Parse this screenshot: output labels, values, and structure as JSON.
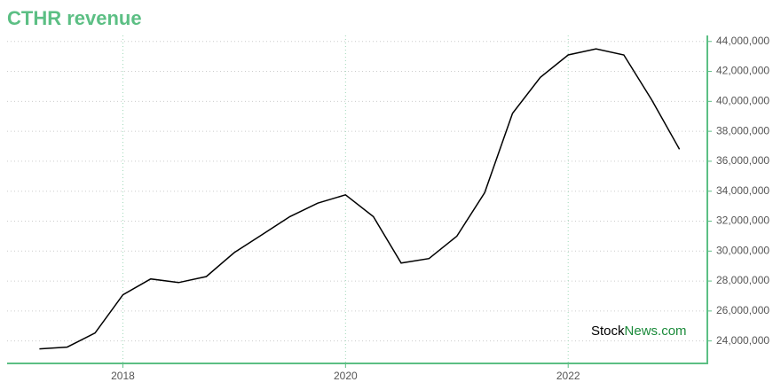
{
  "chart_data": {
    "type": "line",
    "title": "CTHR revenue",
    "watermark": [
      "Stock",
      "News.com"
    ],
    "x": [
      2017.25,
      2017.5,
      2017.75,
      2018.0,
      2018.25,
      2018.5,
      2018.75,
      2019.0,
      2019.25,
      2019.5,
      2019.75,
      2020.0,
      2020.25,
      2020.5,
      2020.75,
      2021.0,
      2021.25,
      2021.5,
      2021.75,
      2022.0,
      2022.25,
      2022.5,
      2022.75,
      2023.0
    ],
    "series": [
      {
        "color": "#000000",
        "values": [
          23470000,
          23590000,
          24530000,
          27080000,
          28140000,
          27900000,
          28300000,
          29900000,
          31100000,
          32300000,
          33200000,
          33760000,
          32300000,
          29200000,
          29500000,
          31000000,
          33900000,
          39200000,
          41600000,
          43100000,
          43500000,
          43100000,
          40100000,
          36800000
        ]
      }
    ],
    "xlim": [
      2016.96,
      2023.25
    ],
    "xticks": [
      2018,
      2020,
      2022
    ],
    "ylim": [
      22500000,
      44400000
    ],
    "yticks": [
      {
        "value": 24000000,
        "label": "24,000,000"
      },
      {
        "value": 26000000,
        "label": "26,000,000"
      },
      {
        "value": 28000000,
        "label": "28,000,000"
      },
      {
        "value": 30000000,
        "label": "30,000,000"
      },
      {
        "value": 32000000,
        "label": "32,000,000"
      },
      {
        "value": 34000000,
        "label": "34,000,000"
      },
      {
        "value": 36000000,
        "label": "36,000,000"
      },
      {
        "value": 38000000,
        "label": "38,000,000"
      },
      {
        "value": 40000000,
        "label": "40,000,000"
      },
      {
        "value": 42000000,
        "label": "42,000,000"
      },
      {
        "value": 44000000,
        "label": "44,000,000"
      }
    ],
    "grid": true,
    "axis_color": "#5cbf84"
  }
}
